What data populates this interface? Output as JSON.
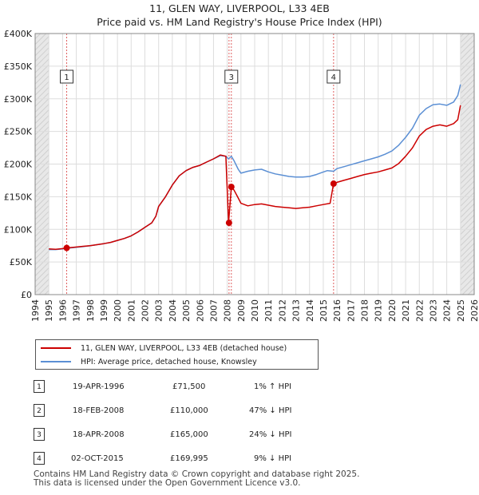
{
  "title": {
    "line1": "11, GLEN WAY, LIVERPOOL, L33 4EB",
    "line2": "Price paid vs. HM Land Registry's House Price Index (HPI)"
  },
  "chart_data": {
    "type": "line",
    "title": "11, GLEN WAY, LIVERPOOL, L33 4EB — Price paid vs. HM Land Registry's House Price Index (HPI)",
    "xlim": [
      1994,
      2026
    ],
    "ylim": [
      0,
      400000
    ],
    "xticks": [
      1994,
      1995,
      1996,
      1997,
      1998,
      1999,
      2000,
      2001,
      2002,
      2003,
      2004,
      2005,
      2006,
      2007,
      2008,
      2009,
      2010,
      2011,
      2012,
      2013,
      2014,
      2015,
      2016,
      2017,
      2018,
      2019,
      2020,
      2021,
      2022,
      2023,
      2024,
      2025,
      2026
    ],
    "yticks": [
      {
        "value": 0,
        "label": "£0"
      },
      {
        "value": 50000,
        "label": "£50K"
      },
      {
        "value": 100000,
        "label": "£100K"
      },
      {
        "value": 150000,
        "label": "£150K"
      },
      {
        "value": 200000,
        "label": "£200K"
      },
      {
        "value": 250000,
        "label": "£250K"
      },
      {
        "value": 300000,
        "label": "£300K"
      },
      {
        "value": 350000,
        "label": "£350K"
      },
      {
        "value": 400000,
        "label": "£400K"
      }
    ],
    "data_range": [
      1995.0,
      2025.0
    ],
    "series": [
      {
        "name": "11, GLEN WAY, LIVERPOOL, L33 4EB (detached house)",
        "color": "#cc0000",
        "points": [
          [
            1995.0,
            70000
          ],
          [
            1995.5,
            69500
          ],
          [
            1996.0,
            70500
          ],
          [
            1996.3,
            71500
          ],
          [
            1996.8,
            72500
          ],
          [
            1997.5,
            74000
          ],
          [
            1998.0,
            75000
          ],
          [
            1998.5,
            76500
          ],
          [
            1999.0,
            78000
          ],
          [
            1999.5,
            80000
          ],
          [
            2000.0,
            83000
          ],
          [
            2000.5,
            86000
          ],
          [
            2001.0,
            90000
          ],
          [
            2001.5,
            96000
          ],
          [
            2002.0,
            103000
          ],
          [
            2002.5,
            110000
          ],
          [
            2002.8,
            120000
          ],
          [
            2003.0,
            135000
          ],
          [
            2003.5,
            150000
          ],
          [
            2004.0,
            168000
          ],
          [
            2004.5,
            182000
          ],
          [
            2005.0,
            190000
          ],
          [
            2005.5,
            195000
          ],
          [
            2006.0,
            198000
          ],
          [
            2006.5,
            203000
          ],
          [
            2007.0,
            208000
          ],
          [
            2007.5,
            214000
          ],
          [
            2007.9,
            212000
          ],
          [
            2008.1,
            110000
          ],
          [
            2008.3,
            165000
          ],
          [
            2008.5,
            160000
          ],
          [
            2008.8,
            148000
          ],
          [
            2009.0,
            140000
          ],
          [
            2009.5,
            136000
          ],
          [
            2010.0,
            138000
          ],
          [
            2010.5,
            139000
          ],
          [
            2011.0,
            137000
          ],
          [
            2011.5,
            135000
          ],
          [
            2012.0,
            134000
          ],
          [
            2012.5,
            133000
          ],
          [
            2013.0,
            132000
          ],
          [
            2013.5,
            133000
          ],
          [
            2014.0,
            134000
          ],
          [
            2014.5,
            136000
          ],
          [
            2015.0,
            138000
          ],
          [
            2015.5,
            140000
          ],
          [
            2015.75,
            169995
          ],
          [
            2016.0,
            172000
          ],
          [
            2016.5,
            175000
          ],
          [
            2017.0,
            178000
          ],
          [
            2017.5,
            181000
          ],
          [
            2018.0,
            184000
          ],
          [
            2018.5,
            186000
          ],
          [
            2019.0,
            188000
          ],
          [
            2019.5,
            191000
          ],
          [
            2020.0,
            194000
          ],
          [
            2020.5,
            201000
          ],
          [
            2021.0,
            212000
          ],
          [
            2021.5,
            225000
          ],
          [
            2022.0,
            243000
          ],
          [
            2022.5,
            253000
          ],
          [
            2023.0,
            258000
          ],
          [
            2023.5,
            260000
          ],
          [
            2024.0,
            258000
          ],
          [
            2024.5,
            262000
          ],
          [
            2024.8,
            268000
          ],
          [
            2025.0,
            290000
          ]
        ]
      },
      {
        "name": "HPI: Average price, detached house, Knowsley",
        "color": "#5b8fd4",
        "points": [
          [
            1995.0,
            69000
          ],
          [
            1995.5,
            69000
          ],
          [
            1996.0,
            70000
          ],
          [
            1996.3,
            71000
          ],
          [
            1996.8,
            72000
          ],
          [
            1997.5,
            73500
          ],
          [
            1998.0,
            75000
          ],
          [
            1998.5,
            76500
          ],
          [
            1999.0,
            78000
          ],
          [
            1999.5,
            80000
          ],
          [
            2000.0,
            83000
          ],
          [
            2000.5,
            86000
          ],
          [
            2001.0,
            90000
          ],
          [
            2001.5,
            96000
          ],
          [
            2002.0,
            103000
          ],
          [
            2002.5,
            110000
          ],
          [
            2002.8,
            120000
          ],
          [
            2003.0,
            135000
          ],
          [
            2003.5,
            150000
          ],
          [
            2004.0,
            168000
          ],
          [
            2004.5,
            182000
          ],
          [
            2005.0,
            190000
          ],
          [
            2005.5,
            195000
          ],
          [
            2006.0,
            198000
          ],
          [
            2006.5,
            203000
          ],
          [
            2007.0,
            208000
          ],
          [
            2007.5,
            213000
          ],
          [
            2007.9,
            212000
          ],
          [
            2008.1,
            208000
          ],
          [
            2008.3,
            212000
          ],
          [
            2008.5,
            205000
          ],
          [
            2008.8,
            192000
          ],
          [
            2009.0,
            186000
          ],
          [
            2009.5,
            189000
          ],
          [
            2010.0,
            191000
          ],
          [
            2010.5,
            192000
          ],
          [
            2011.0,
            188000
          ],
          [
            2011.5,
            185000
          ],
          [
            2012.0,
            183000
          ],
          [
            2012.5,
            181000
          ],
          [
            2013.0,
            180000
          ],
          [
            2013.5,
            180000
          ],
          [
            2014.0,
            181000
          ],
          [
            2014.5,
            184000
          ],
          [
            2014.9,
            187000
          ],
          [
            2015.3,
            190000
          ],
          [
            2015.75,
            189000
          ],
          [
            2016.0,
            193000
          ],
          [
            2016.5,
            196000
          ],
          [
            2017.0,
            199000
          ],
          [
            2017.5,
            202000
          ],
          [
            2018.0,
            205000
          ],
          [
            2018.5,
            208000
          ],
          [
            2019.0,
            211000
          ],
          [
            2019.5,
            215000
          ],
          [
            2020.0,
            220000
          ],
          [
            2020.5,
            229000
          ],
          [
            2021.0,
            241000
          ],
          [
            2021.5,
            255000
          ],
          [
            2022.0,
            275000
          ],
          [
            2022.5,
            285000
          ],
          [
            2023.0,
            291000
          ],
          [
            2023.5,
            292000
          ],
          [
            2024.0,
            290000
          ],
          [
            2024.5,
            295000
          ],
          [
            2024.8,
            305000
          ],
          [
            2025.0,
            322000
          ]
        ]
      }
    ],
    "sales": [
      {
        "n": "1",
        "x": 1996.3,
        "y": 71500
      },
      {
        "n": "2",
        "x": 2008.13,
        "y": 110000
      },
      {
        "n": "3",
        "x": 2008.3,
        "y": 165000
      },
      {
        "n": "4",
        "x": 2015.75,
        "y": 169995
      }
    ],
    "marker_boxes": [
      {
        "n": "1",
        "x": 1996.3
      },
      {
        "n": "3",
        "x": 2008.3
      },
      {
        "n": "4",
        "x": 2015.75
      }
    ]
  },
  "legend": {
    "items": [
      {
        "label": "11, GLEN WAY, LIVERPOOL, L33 4EB (detached house)",
        "color": "#cc0000"
      },
      {
        "label": "HPI: Average price, detached house, Knowsley",
        "color": "#5b8fd4"
      }
    ]
  },
  "transactions": [
    {
      "n": "1",
      "date": "19-APR-1996",
      "price": "£71,500",
      "hpi": "1% ↑ HPI"
    },
    {
      "n": "2",
      "date": "18-FEB-2008",
      "price": "£110,000",
      "hpi": "47% ↓ HPI"
    },
    {
      "n": "3",
      "date": "18-APR-2008",
      "price": "£165,000",
      "hpi": "24% ↓ HPI"
    },
    {
      "n": "4",
      "date": "02-OCT-2015",
      "price": "£169,995",
      "hpi": "9% ↓ HPI"
    }
  ],
  "footer": {
    "line1": "Contains HM Land Registry data © Crown copyright and database right 2025.",
    "line2": "This data is licensed under the Open Government Licence v3.0."
  }
}
